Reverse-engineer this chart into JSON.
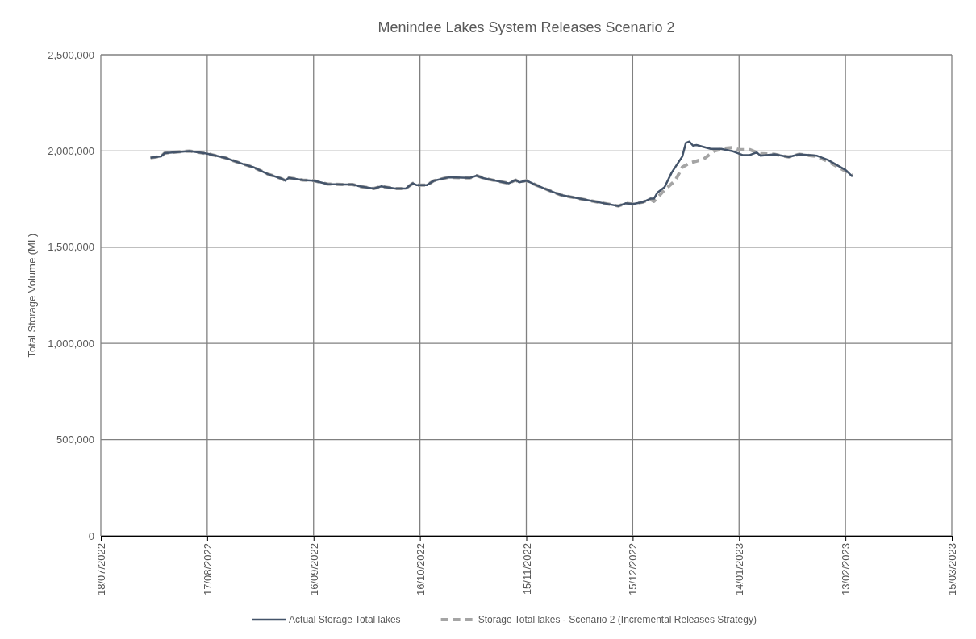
{
  "chart_data": {
    "type": "line",
    "title": "Menindee Lakes System Releases Scenario 2",
    "ylabel": "Total Storage Volume (ML)",
    "xlim": [
      "2022-07-18",
      "2023-03-15"
    ],
    "xticks": [
      {
        "value": "2022-07-18",
        "label": "18/07/2022"
      },
      {
        "value": "2022-08-17",
        "label": "17/08/2022"
      },
      {
        "value": "2022-09-16",
        "label": "16/09/2022"
      },
      {
        "value": "2022-10-16",
        "label": "16/10/2022"
      },
      {
        "value": "2022-11-15",
        "label": "15/11/2022"
      },
      {
        "value": "2022-12-15",
        "label": "15/12/2022"
      },
      {
        "value": "2023-01-14",
        "label": "14/01/2023"
      },
      {
        "value": "2023-02-13",
        "label": "13/02/2023"
      },
      {
        "value": "2023-03-15",
        "label": "15/03/2023"
      }
    ],
    "ylim": [
      0,
      2500000
    ],
    "yticks": [
      {
        "value": 0,
        "label": "0"
      },
      {
        "value": 500000,
        "label": "500,000"
      },
      {
        "value": 1000000,
        "label": "1,000,000"
      },
      {
        "value": 1500000,
        "label": "1,500,000"
      },
      {
        "value": 2000000,
        "label": "2,000,000"
      },
      {
        "value": 2500000,
        "label": "2,500,000"
      }
    ],
    "grid": true,
    "legend": "bottom",
    "marker": "none",
    "series": [
      {
        "name": "Actual Storage Total lakes",
        "color": "#44546a",
        "line_style": "solid",
        "x": [
          "2022-08-01",
          "2022-08-04",
          "2022-08-05",
          "2022-08-12",
          "2022-08-17",
          "2022-08-22",
          "2022-08-27",
          "2022-08-30",
          "2022-09-03",
          "2022-09-07",
          "2022-09-08",
          "2022-09-09",
          "2022-09-13",
          "2022-09-16",
          "2022-09-20",
          "2022-09-24",
          "2022-09-27",
          "2022-09-29",
          "2022-10-03",
          "2022-10-05",
          "2022-10-09",
          "2022-10-12",
          "2022-10-14",
          "2022-10-15",
          "2022-10-18",
          "2022-10-20",
          "2022-10-24",
          "2022-10-30",
          "2022-11-01",
          "2022-11-03",
          "2022-11-10",
          "2022-11-12",
          "2022-11-13",
          "2022-11-15",
          "2022-11-18",
          "2022-11-22",
          "2022-11-25",
          "2022-12-03",
          "2022-12-07",
          "2022-12-11",
          "2022-12-13",
          "2022-12-15",
          "2022-12-18",
          "2022-12-20",
          "2022-12-21",
          "2022-12-22",
          "2022-12-24",
          "2022-12-26",
          "2022-12-29",
          "2022-12-30",
          "2022-12-31",
          "2023-01-01",
          "2023-01-02",
          "2023-01-06",
          "2023-01-09",
          "2023-01-12",
          "2023-01-15",
          "2023-01-17",
          "2023-01-19",
          "2023-01-20",
          "2023-01-24",
          "2023-01-28",
          "2023-01-31",
          "2023-02-05",
          "2023-02-08",
          "2023-02-11",
          "2023-02-13",
          "2023-02-15"
        ],
        "values": [
          1965000,
          1972000,
          1989000,
          2000000,
          1986000,
          1965000,
          1933000,
          1916000,
          1881000,
          1856000,
          1846000,
          1860000,
          1849000,
          1846000,
          1828000,
          1826000,
          1826000,
          1816000,
          1805000,
          1816000,
          1805000,
          1805000,
          1832000,
          1823000,
          1823000,
          1846000,
          1863000,
          1860000,
          1872000,
          1858000,
          1832000,
          1849000,
          1837000,
          1846000,
          1821000,
          1791000,
          1770000,
          1742000,
          1728000,
          1714000,
          1728000,
          1724000,
          1735000,
          1752000,
          1752000,
          1784000,
          1812000,
          1888000,
          1972000,
          2042000,
          2049000,
          2028000,
          2031000,
          2011000,
          2011000,
          2000000,
          1979000,
          1979000,
          1993000,
          1976000,
          1983000,
          1969000,
          1983000,
          1975000,
          1954000,
          1923000,
          1902000,
          1867000
        ]
      },
      {
        "name": "Storage Total lakes - Scenario 2 (Incremental Releases Strategy)",
        "color": "#a5a5a5",
        "line_style": "dashed",
        "x": [
          "2022-08-01",
          "2022-08-04",
          "2022-08-05",
          "2022-08-12",
          "2022-08-17",
          "2022-08-22",
          "2022-08-27",
          "2022-08-30",
          "2022-09-03",
          "2022-09-07",
          "2022-09-08",
          "2022-09-09",
          "2022-09-13",
          "2022-09-16",
          "2022-09-20",
          "2022-09-24",
          "2022-09-27",
          "2022-09-29",
          "2022-10-03",
          "2022-10-05",
          "2022-10-09",
          "2022-10-12",
          "2022-10-14",
          "2022-10-15",
          "2022-10-18",
          "2022-10-20",
          "2022-10-24",
          "2022-10-30",
          "2022-11-01",
          "2022-11-03",
          "2022-11-10",
          "2022-11-12",
          "2022-11-13",
          "2022-11-15",
          "2022-11-18",
          "2022-11-22",
          "2022-11-25",
          "2022-12-03",
          "2022-12-07",
          "2022-12-11",
          "2022-12-13",
          "2022-12-15",
          "2022-12-18",
          "2022-12-20",
          "2022-12-21",
          "2022-12-24",
          "2022-12-27",
          "2022-12-29",
          "2022-12-31",
          "2023-01-04",
          "2023-01-07",
          "2023-01-10",
          "2023-01-12",
          "2023-01-14",
          "2023-01-17",
          "2023-01-20",
          "2023-01-24",
          "2023-01-28",
          "2023-01-31",
          "2023-02-05",
          "2023-02-09",
          "2023-02-13",
          "2023-02-15"
        ],
        "values": [
          1965000,
          1972000,
          1989000,
          2000000,
          1986000,
          1965000,
          1933000,
          1916000,
          1881000,
          1856000,
          1846000,
          1860000,
          1849000,
          1846000,
          1828000,
          1826000,
          1826000,
          1816000,
          1805000,
          1816000,
          1805000,
          1805000,
          1832000,
          1823000,
          1823000,
          1846000,
          1863000,
          1860000,
          1872000,
          1858000,
          1832000,
          1849000,
          1837000,
          1846000,
          1821000,
          1791000,
          1770000,
          1742000,
          1728000,
          1714000,
          1728000,
          1724000,
          1735000,
          1749000,
          1738000,
          1798000,
          1846000,
          1916000,
          1937000,
          1958000,
          2000000,
          2014000,
          2017000,
          2007000,
          2007000,
          1986000,
          1983000,
          1969000,
          1983000,
          1972000,
          1937000,
          1895000,
          1874000
        ]
      }
    ]
  }
}
